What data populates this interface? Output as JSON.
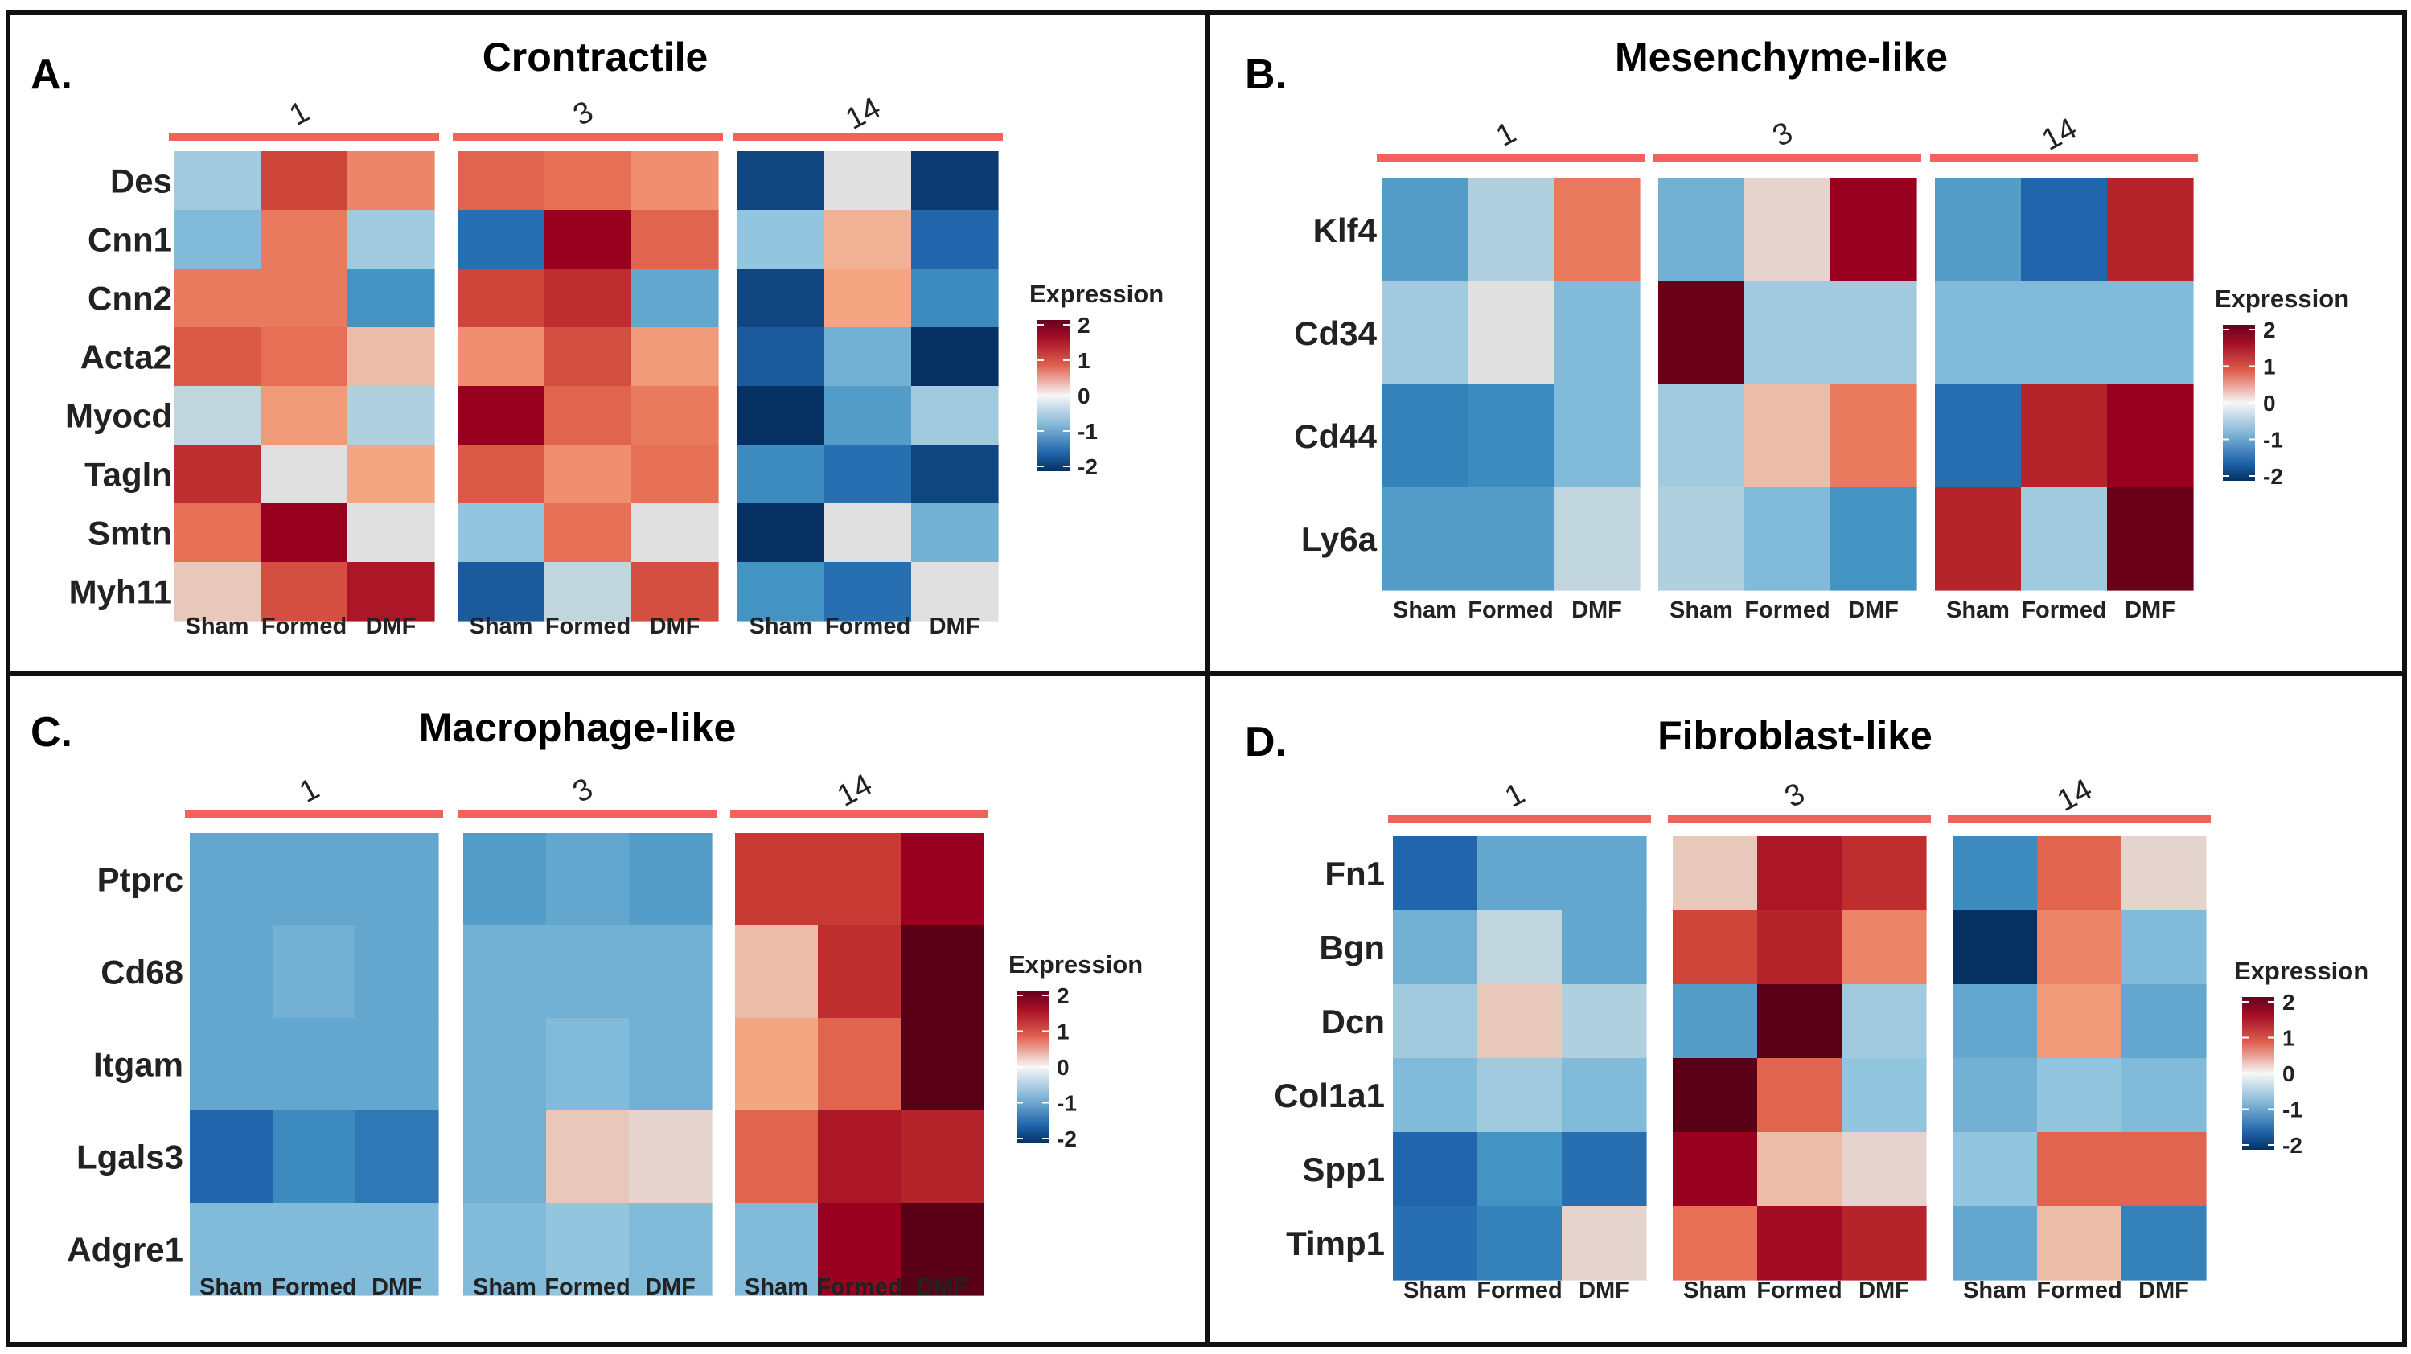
{
  "figure": {
    "legend_title": "Expression",
    "legend_ticks": [
      "2",
      "1",
      "0",
      "-1",
      "-2"
    ],
    "colors": {
      "low": "#053061",
      "mid": "#f7f7f7",
      "high": "#67001f",
      "bar": "#f0625a",
      "border": "#111111"
    }
  },
  "chart_data": [
    {
      "type": "heatmap",
      "panel_letter": "A.",
      "title": "Crontractile",
      "groups": [
        "1",
        "3",
        "14"
      ],
      "columns": [
        "Sham",
        "Formed",
        "DMF"
      ],
      "rows": [
        "Des",
        "Cnn1",
        "Cnn2",
        "Acta2",
        "Myocd",
        "Tagln",
        "Smtn",
        "Myh11"
      ],
      "color_scale": {
        "min": -2,
        "max": 2,
        "label": "Expression"
      },
      "values": [
        [
          [
            -0.4,
            1.4,
            0.8
          ],
          [
            1.1,
            1.0,
            0.7
          ],
          [
            -1.8,
            0.0,
            -1.9
          ]
        ],
        [
          [
            -0.6,
            0.9,
            -0.4
          ],
          [
            -1.4,
            2.0,
            1.1
          ],
          [
            -0.5,
            0.4,
            -1.5
          ]
        ],
        [
          [
            0.9,
            0.9,
            -1.0
          ],
          [
            1.4,
            1.6,
            -0.8
          ],
          [
            -1.8,
            0.5,
            -1.1
          ]
        ],
        [
          [
            1.2,
            1.0,
            0.3
          ],
          [
            0.7,
            1.3,
            0.6
          ],
          [
            -1.6,
            -0.7,
            -2.0
          ]
        ],
        [
          [
            -0.2,
            0.6,
            -0.3
          ],
          [
            2.0,
            1.1,
            0.9
          ],
          [
            -2.0,
            -0.9,
            -0.4
          ]
        ],
        [
          [
            1.6,
            0.0,
            0.5
          ],
          [
            1.2,
            0.7,
            1.0
          ],
          [
            -1.1,
            -1.4,
            -1.8
          ]
        ],
        [
          [
            1.0,
            2.0,
            0.0
          ],
          [
            -0.5,
            1.0,
            0.0
          ],
          [
            -2.2,
            0.0,
            -0.7
          ]
        ],
        [
          [
            0.2,
            1.3,
            1.8
          ],
          [
            -1.6,
            -0.2,
            1.3
          ],
          [
            -1.0,
            -1.4,
            0.0
          ]
        ]
      ]
    },
    {
      "type": "heatmap",
      "panel_letter": "B.",
      "title": "Mesenchyme-like",
      "groups": [
        "1",
        "3",
        "14"
      ],
      "columns": [
        "Sham",
        "Formed",
        "DMF"
      ],
      "rows": [
        "Klf4",
        "Cd34",
        "Cd44",
        "Ly6a"
      ],
      "color_scale": {
        "min": -2,
        "max": 2,
        "label": "Expression"
      },
      "values": [
        [
          [
            -0.9,
            -0.3,
            0.9
          ],
          [
            -0.7,
            0.1,
            2.0
          ],
          [
            -0.9,
            -1.5,
            1.7
          ]
        ],
        [
          [
            -0.4,
            0.0,
            -0.6
          ],
          [
            2.3,
            -0.4,
            -0.4
          ],
          [
            -0.6,
            -0.6,
            -0.6
          ]
        ],
        [
          [
            -1.2,
            -1.1,
            -0.6
          ],
          [
            -0.4,
            0.3,
            0.9
          ],
          [
            -1.4,
            1.7,
            2.0
          ]
        ],
        [
          [
            -0.9,
            -0.9,
            -0.2
          ],
          [
            -0.3,
            -0.6,
            -1.0
          ],
          [
            1.7,
            -0.4,
            2.3
          ]
        ]
      ]
    },
    {
      "type": "heatmap",
      "panel_letter": "C.",
      "title": "Macrophage-like",
      "groups": [
        "1",
        "3",
        "14"
      ],
      "columns": [
        "Sham",
        "Formed",
        "DMF"
      ],
      "rows": [
        "Ptprc",
        "Cd68",
        "Itgam",
        "Lgals3",
        "Adgre1"
      ],
      "color_scale": {
        "min": -2,
        "max": 2,
        "label": "Expression"
      },
      "values": [
        [
          [
            -0.8,
            -0.8,
            -0.8
          ],
          [
            -0.9,
            -0.8,
            -0.9
          ],
          [
            1.5,
            1.5,
            2.0
          ]
        ],
        [
          [
            -0.8,
            -0.7,
            -0.8
          ],
          [
            -0.7,
            -0.7,
            -0.7
          ],
          [
            0.3,
            1.6,
            2.4
          ]
        ],
        [
          [
            -0.8,
            -0.8,
            -0.8
          ],
          [
            -0.7,
            -0.6,
            -0.7
          ],
          [
            0.5,
            1.1,
            2.4
          ]
        ],
        [
          [
            -1.5,
            -1.1,
            -1.3
          ],
          [
            -0.7,
            0.2,
            0.1
          ],
          [
            1.1,
            1.8,
            1.7
          ]
        ],
        [
          [
            -0.6,
            -0.6,
            -0.6
          ],
          [
            -0.6,
            -0.5,
            -0.6
          ],
          [
            -0.6,
            2.0,
            2.4
          ]
        ]
      ]
    },
    {
      "type": "heatmap",
      "panel_letter": "D.",
      "title": "Fibroblast-like",
      "groups": [
        "1",
        "3",
        "14"
      ],
      "columns": [
        "Sham",
        "Formed",
        "DMF"
      ],
      "rows": [
        "Fn1",
        "Bgn",
        "Dcn",
        "Col1a1",
        "Spp1",
        "Timp1"
      ],
      "color_scale": {
        "min": -2,
        "max": 2,
        "label": "Expression"
      },
      "values": [
        [
          [
            -1.5,
            -0.8,
            -0.8
          ],
          [
            0.2,
            1.8,
            1.6
          ],
          [
            -1.1,
            1.1,
            0.1
          ]
        ],
        [
          [
            -0.7,
            -0.2,
            -0.8
          ],
          [
            1.4,
            1.7,
            0.8
          ],
          [
            -2.0,
            0.8,
            -0.6
          ]
        ],
        [
          [
            -0.4,
            0.2,
            -0.3
          ],
          [
            -0.9,
            2.4,
            -0.4
          ],
          [
            -0.8,
            0.6,
            -0.8
          ]
        ],
        [
          [
            -0.6,
            -0.4,
            -0.6
          ],
          [
            2.4,
            1.1,
            -0.5
          ],
          [
            -0.7,
            -0.5,
            -0.6
          ]
        ],
        [
          [
            -1.5,
            -1.0,
            -1.4
          ],
          [
            2.0,
            0.3,
            0.1
          ],
          [
            -0.5,
            1.1,
            1.1
          ]
        ],
        [
          [
            -1.4,
            -1.2,
            0.1
          ],
          [
            1.0,
            1.9,
            1.7
          ],
          [
            -0.8,
            0.3,
            -1.2
          ]
        ]
      ]
    }
  ]
}
